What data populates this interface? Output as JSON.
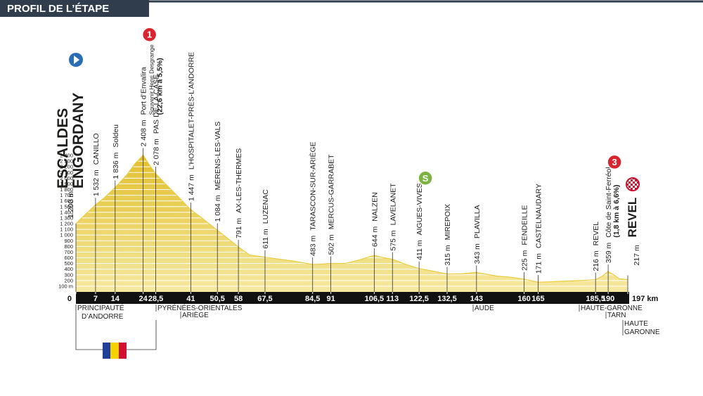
{
  "title": "PROFIL DE L’ÉTAPE",
  "chart_data": {
    "type": "area",
    "color": "#e9cd45",
    "xlim": [
      0,
      197
    ],
    "ylim": [
      0,
      2400
    ],
    "yticks": [
      {
        "value": 100,
        "label": "100 m"
      },
      200,
      300,
      400,
      500,
      600,
      700,
      800,
      900,
      {
        "value": 1000,
        "label": "1 000"
      },
      {
        "value": 1100,
        "label": "1 100"
      },
      {
        "value": 1200,
        "label": "1 200"
      },
      {
        "value": 1300,
        "label": "1 300"
      },
      {
        "value": 1400,
        "label": "1 400"
      },
      {
        "value": 1500,
        "label": "1 500"
      },
      {
        "value": 1600,
        "label": "1 600"
      },
      {
        "value": 1700,
        "label": "1 700"
      },
      {
        "value": 1800,
        "label": "1 800"
      },
      {
        "value": 1900,
        "label": "1 900"
      },
      {
        "value": 2000,
        "label": "2 000"
      },
      {
        "value": 2100,
        "label": "2 100"
      },
      {
        "value": 2200,
        "label": "2 200"
      },
      {
        "value": 2300,
        "label": "2 300"
      },
      {
        "value": 2400,
        "label": "2 400"
      }
    ],
    "xticks": [
      0,
      7,
      14,
      24,
      {
        "value": 28.5,
        "label": "28,5"
      },
      41,
      {
        "value": 50.5,
        "label": "50,5"
      },
      58,
      {
        "value": 67.5,
        "label": "67,5"
      },
      {
        "value": 84.5,
        "label": "84,5"
      },
      91,
      {
        "value": 106.5,
        "label": "106,5"
      },
      113,
      {
        "value": 122.5,
        "label": "122,5"
      },
      {
        "value": 132.5,
        "label": "132,5"
      },
      143,
      160,
      165,
      {
        "value": 185.5,
        "label": "185,5"
      },
      190,
      {
        "value": 197,
        "label": "197 km"
      }
    ],
    "x": [
      0,
      2,
      7,
      10,
      14,
      18,
      21,
      24,
      26,
      28.5,
      32,
      36,
      41,
      45,
      50.5,
      54,
      58,
      62,
      67.5,
      72,
      78,
      84.5,
      88,
      91,
      96,
      101,
      106.5,
      110,
      113,
      118,
      122.5,
      127,
      132.5,
      138,
      143,
      150,
      155,
      160,
      165,
      170,
      175,
      180,
      185.5,
      188,
      190,
      192,
      194,
      197
    ],
    "values": [
      1200,
      1300,
      1532,
      1650,
      1836,
      2050,
      2250,
      2408,
      2250,
      2078,
      1900,
      1700,
      1447,
      1300,
      1084,
      950,
      791,
      650,
      611,
      580,
      540,
      483,
      490,
      502,
      500,
      560,
      644,
      600,
      575,
      480,
      411,
      370,
      315,
      320,
      343,
      280,
      260,
      225,
      171,
      180,
      190,
      200,
      216,
      280,
      359,
      300,
      230,
      217
    ],
    "waypoints": [
      {
        "km": 0,
        "altitude": 1200,
        "altitude_label": "1 200 m",
        "name": [
          "ESCALDES",
          "ENGORDANY"
        ]
      },
      {
        "km": 7,
        "altitude": 1532,
        "altitude_label": "1 532 m",
        "name": [
          "CANILLO"
        ]
      },
      {
        "km": 14,
        "altitude": 1836,
        "altitude_label": "1 836 m",
        "name": [
          "Soldeu"
        ]
      },
      {
        "km": 24,
        "altitude": 2408,
        "altitude_label": "2 408 m",
        "name": [
          "Port d’Envalira",
          "Souvenir Henri Desgrange",
          "(22,6 km à 5,5%)"
        ],
        "marker": "1"
      },
      {
        "km": 28.5,
        "altitude": 2078,
        "altitude_label": "2 078 m",
        "name": [
          "PAS DE LA CASE"
        ]
      },
      {
        "km": 41,
        "altitude": 1447,
        "altitude_label": "1 447 m",
        "name": [
          "L’HOSPITALET-PRÈS-L’ANDORRE"
        ]
      },
      {
        "km": 50.5,
        "altitude": 1084,
        "altitude_label": "1 084 m",
        "name": [
          "MÉRENS-LES-VALS"
        ]
      },
      {
        "km": 58,
        "altitude": 791,
        "altitude_label": "791 m",
        "name": [
          "AX-LES-THERMES"
        ]
      },
      {
        "km": 67.5,
        "altitude": 611,
        "altitude_label": "611 m",
        "name": [
          "LUZENAC"
        ]
      },
      {
        "km": 84.5,
        "altitude": 483,
        "altitude_label": "483 m",
        "name": [
          "TARASCON-SUR-ARIÈGE"
        ]
      },
      {
        "km": 91,
        "altitude": 502,
        "altitude_label": "502 m",
        "name": [
          "MERCUS-GARRABET"
        ]
      },
      {
        "km": 106.5,
        "altitude": 644,
        "altitude_label": "644 m",
        "name": [
          "NALZEN"
        ]
      },
      {
        "km": 113,
        "altitude": 575,
        "altitude_label": "575 m",
        "name": [
          "LAVELANET"
        ]
      },
      {
        "km": 122.5,
        "altitude": 411,
        "altitude_label": "411 m",
        "name": [
          "AIGUES-VIVES"
        ],
        "marker": "S"
      },
      {
        "km": 132.5,
        "altitude": 315,
        "altitude_label": "315 m",
        "name": [
          "MIREPOIX"
        ]
      },
      {
        "km": 143,
        "altitude": 343,
        "altitude_label": "343 m",
        "name": [
          "PLAVILLA"
        ]
      },
      {
        "km": 160,
        "altitude": 225,
        "altitude_label": "225 m",
        "name": [
          "FENDEILLE"
        ]
      },
      {
        "km": 165,
        "altitude": 171,
        "altitude_label": "171 m",
        "name": [
          "CASTELNAUDARY"
        ]
      },
      {
        "km": 185.5,
        "altitude": 216,
        "altitude_label": "216 m",
        "name": [
          "REVEL"
        ]
      },
      {
        "km": 190,
        "altitude": 359,
        "altitude_label": "359 m",
        "name": [
          "Côte de Saint-Ferréol",
          "(1,8 km à 6,6%)"
        ],
        "marker": "3"
      },
      {
        "km": 197,
        "altitude": 217,
        "altitude_label": "217 m",
        "name": [
          "REVEL"
        ]
      }
    ],
    "regions": [
      [
        "PRINCIPAUTÉ",
        "D’ANDORRE"
      ],
      [
        "PYRÉNÉES-ORIENTALES"
      ],
      [
        "ARIÈGE"
      ],
      [
        "AUDE"
      ],
      [
        "HAUTE-GARONNE"
      ],
      [
        "TARN"
      ],
      [
        "HAUTE",
        "GARONNE"
      ]
    ]
  }
}
